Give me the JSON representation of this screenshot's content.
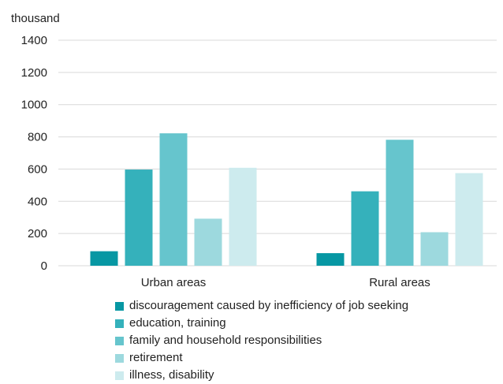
{
  "chart_data": {
    "type": "bar",
    "unit_label": "thousand",
    "categories": [
      "Urban areas",
      "Rural areas"
    ],
    "series": [
      {
        "name": "discouragement caused by inefficiency of job seeking",
        "color": "#0797a3",
        "values": [
          90,
          78
        ]
      },
      {
        "name": "education, training",
        "color": "#35b1bb",
        "values": [
          597,
          462
        ]
      },
      {
        "name": "family and household responsibilities",
        "color": "#66c5cd",
        "values": [
          822,
          782
        ]
      },
      {
        "name": "retirement",
        "color": "#9dd9de",
        "values": [
          292,
          208
        ]
      },
      {
        "name": "illness, disability",
        "color": "#cdebee",
        "values": [
          608,
          575
        ]
      }
    ],
    "ylim": [
      0,
      1400
    ],
    "yticks": [
      0,
      200,
      400,
      600,
      800,
      1000,
      1200,
      1400
    ],
    "grid": true,
    "legend_position": "bottom"
  }
}
